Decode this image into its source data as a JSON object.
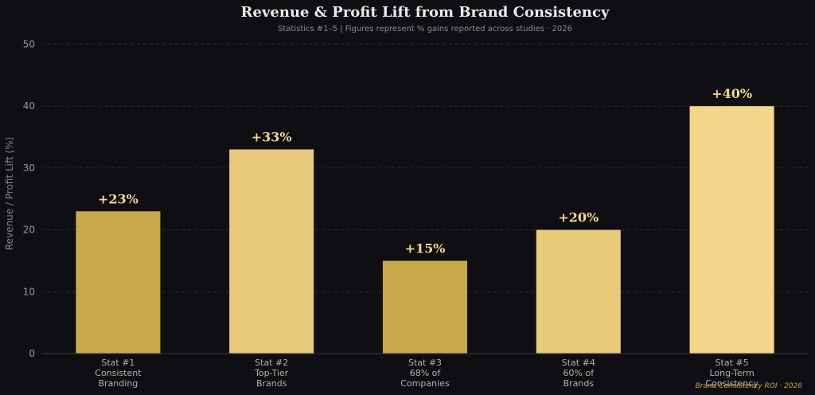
{
  "chart_data": {
    "type": "bar",
    "title": "Revenue & Profit Lift from Brand Consistency",
    "subtitle": "Statistics #1–5 | Figures represent % gains reported across studies · 2026",
    "ylabel": "Revenue / Profit Lift (%)",
    "xlabel": "",
    "ylim": [
      0,
      52
    ],
    "yticks": [
      0,
      10,
      20,
      30,
      40,
      50
    ],
    "grid": true,
    "categories": [
      [
        "Stat #1",
        "Consistent",
        "Branding"
      ],
      [
        "Stat #2",
        "Top-Tier",
        "Brands"
      ],
      [
        "Stat #3",
        "68% of",
        "Companies"
      ],
      [
        "Stat #4",
        "60% of",
        "Brands"
      ],
      [
        "Stat #5",
        "Long-Term",
        "Consistency"
      ]
    ],
    "values": [
      23,
      33,
      15,
      20,
      40
    ],
    "value_labels": [
      "+23%",
      "+33%",
      "+15%",
      "+20%",
      "+40%"
    ],
    "bar_colors": [
      "#c9a84c",
      "#e8c97a",
      "#c9a84c",
      "#e8c97a",
      "#f2d78b"
    ],
    "watermark": "Brand Consistency ROI · 2026"
  },
  "colors": {
    "background": "#0f0e12",
    "grid": "#2c2b2e",
    "axis": "#3a393c",
    "label_gold": "#f3d98a"
  }
}
